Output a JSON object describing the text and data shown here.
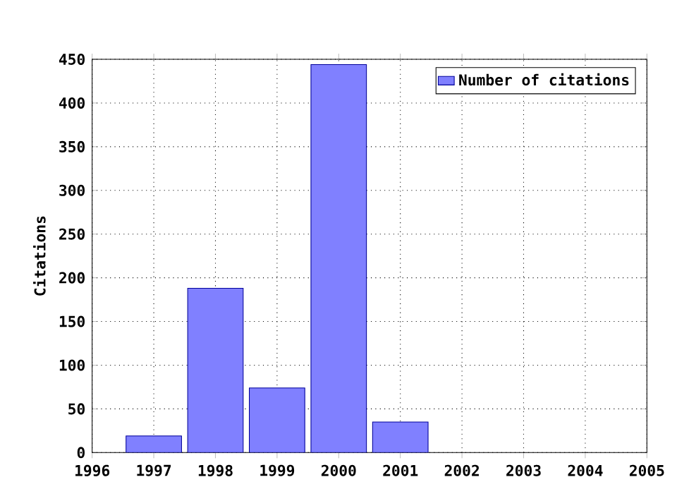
{
  "chart_data": {
    "type": "bar",
    "ylabel": "Citations",
    "x": [
      1997,
      1998,
      1999,
      2000,
      2001
    ],
    "series": [
      {
        "name": "Number of citations",
        "color": "#8080ff",
        "values": [
          19,
          188,
          74,
          444,
          35
        ]
      }
    ],
    "xlim": [
      1996,
      2005
    ],
    "xticks": [
      1996,
      1997,
      1998,
      1999,
      2000,
      2001,
      2002,
      2003,
      2004,
      2005
    ],
    "ylim": [
      0,
      450
    ],
    "yticks": [
      0,
      50,
      100,
      150,
      200,
      250,
      300,
      350,
      400,
      450
    ],
    "grid": true,
    "legend": "top right"
  }
}
